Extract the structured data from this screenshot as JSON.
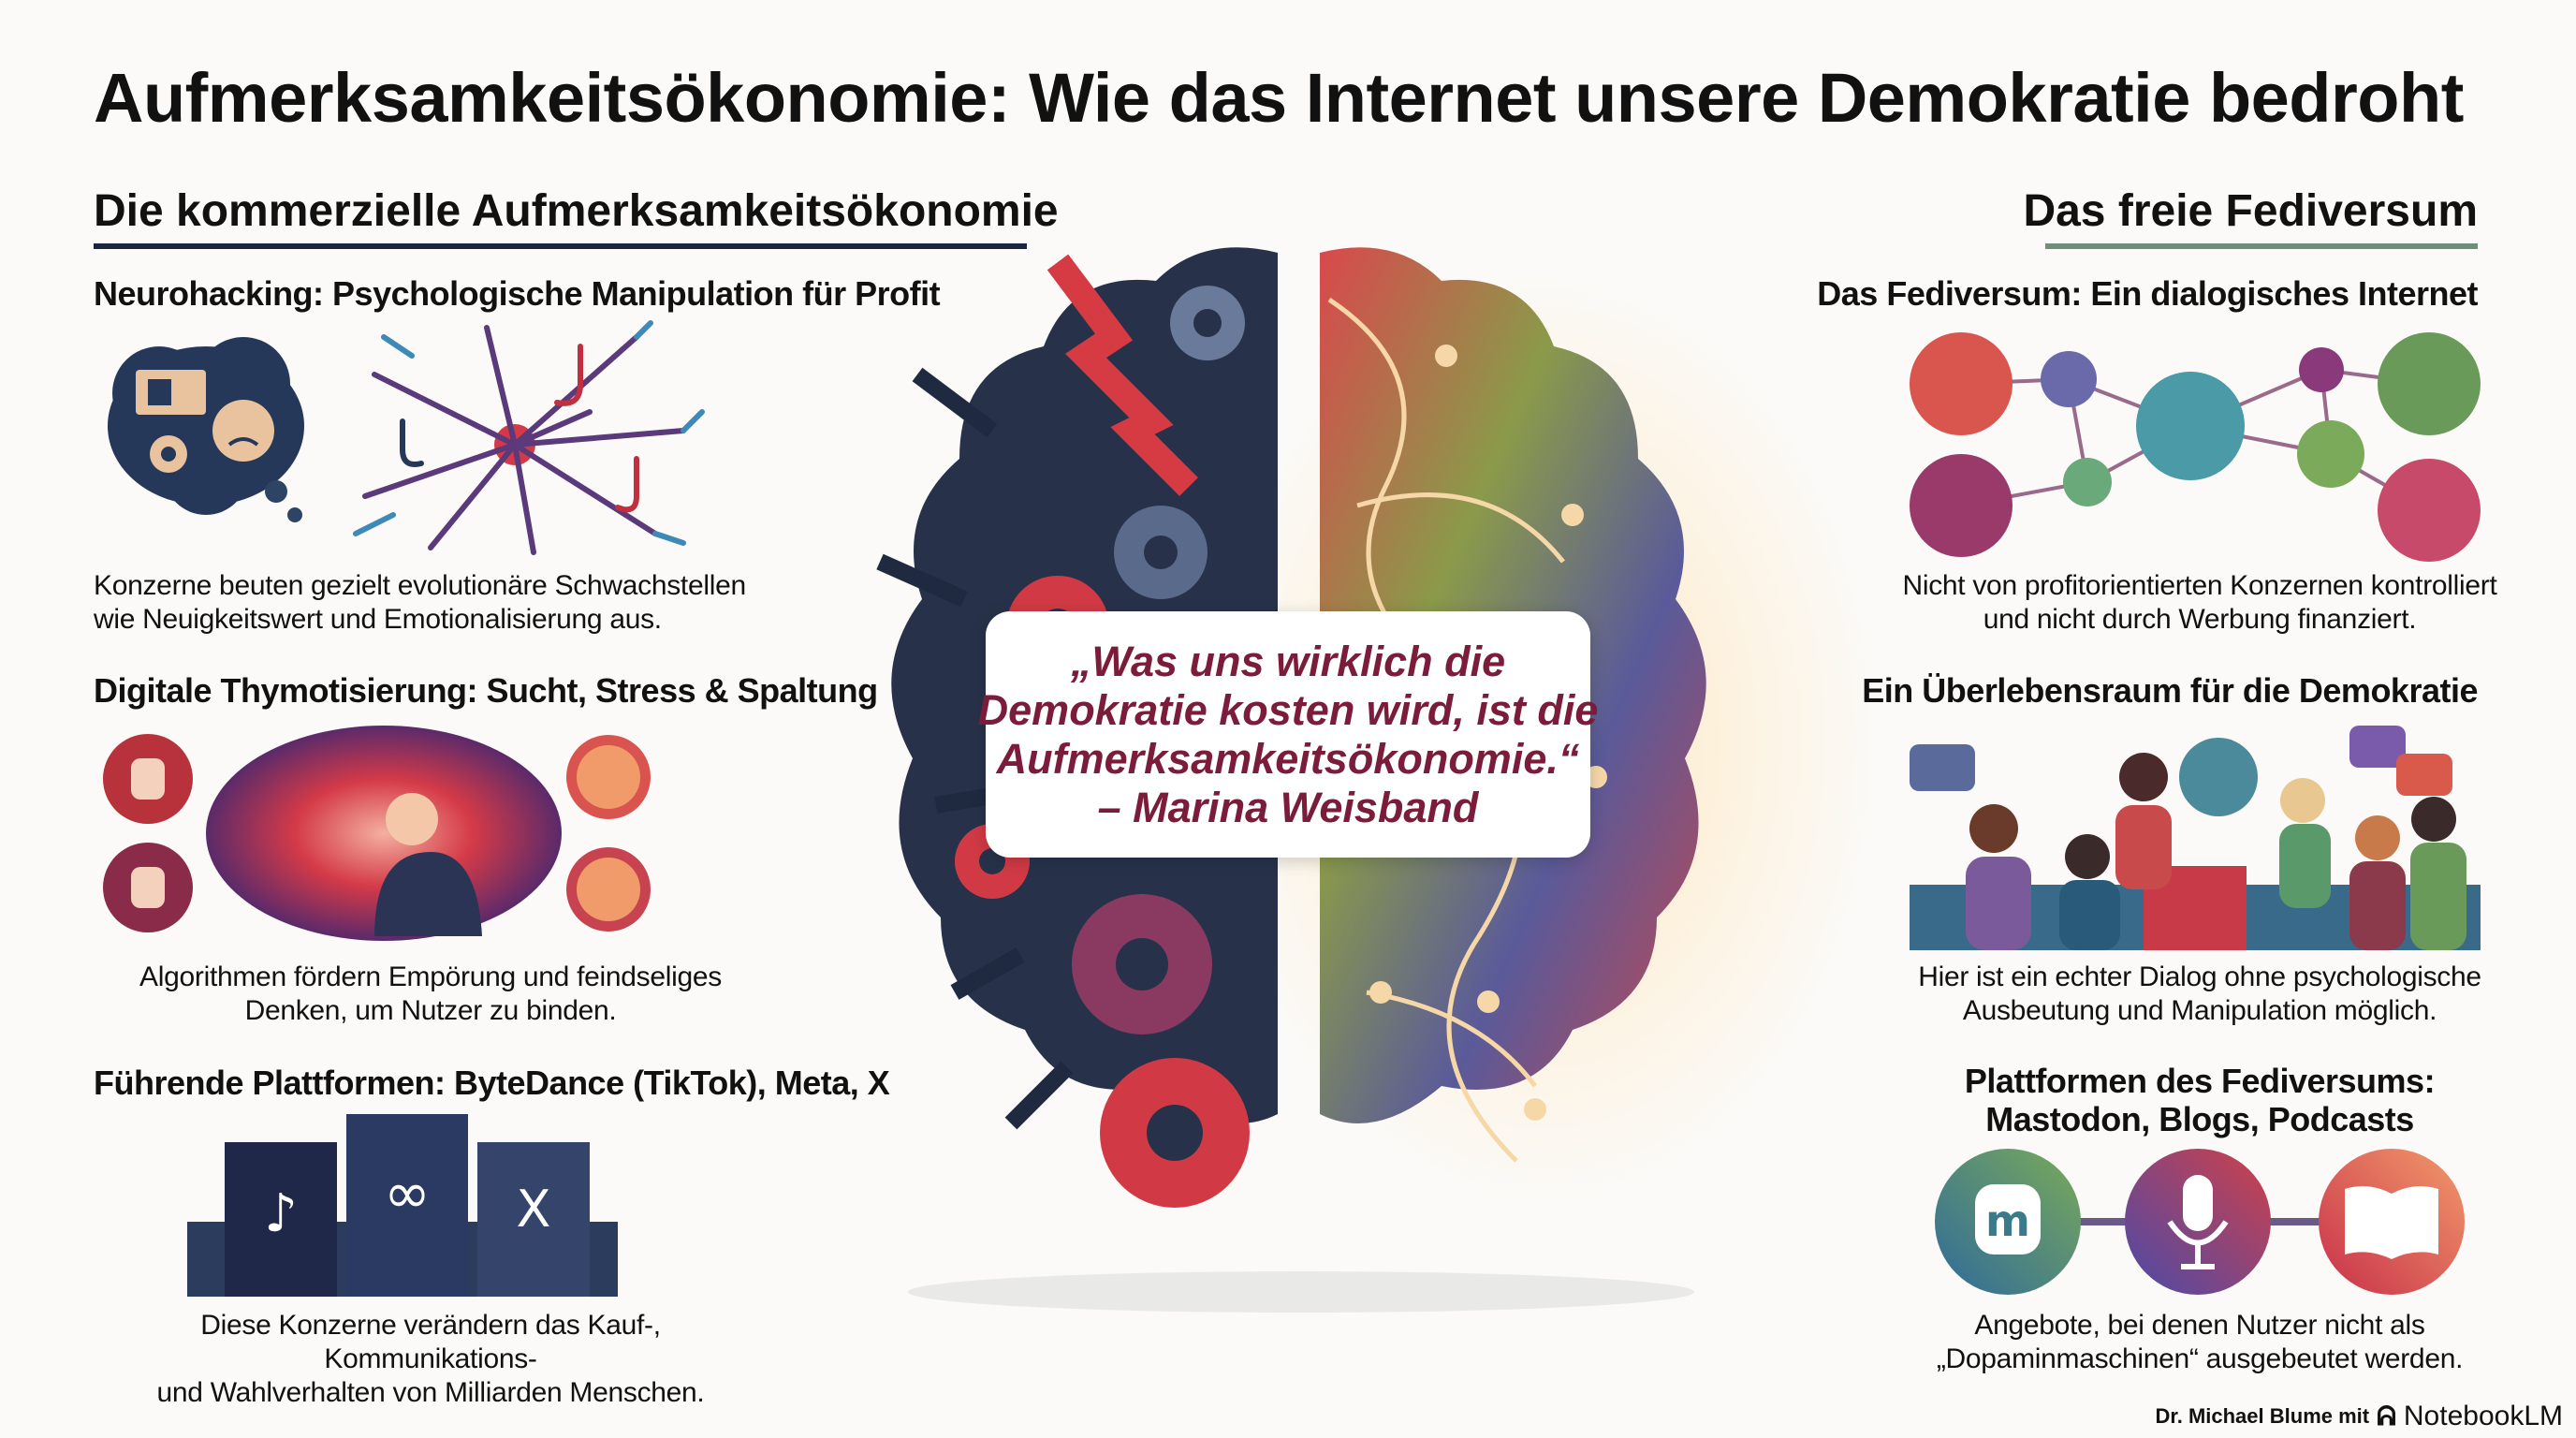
{
  "title": "Aufmerksamkeitsökonomie: Wie das Internet unsere Demokratie bedroht",
  "left": {
    "heading": "Die kommerzielle Aufmerksamkeitsökonomie",
    "accent": "#1c2540",
    "sections": [
      {
        "title": "Neurohacking: Psychologische Manipulation für Profit",
        "text": [
          "Konzerne beuten gezielt evolutionäre Schwachstellen",
          "wie Neuigkeitswert und Emotionalisierung aus."
        ]
      },
      {
        "title": "Digitale Thymotisierung: Sucht, Stress & Spaltung",
        "text": [
          "Algorithmen fördern Empörung und feindseliges",
          "Denken, um Nutzer zu binden."
        ]
      },
      {
        "title": "Führende Plattformen: ByteDance (TikTok), Meta, X",
        "text": [
          "Diese Konzerne verändern das Kauf-, Kommunikations-",
          "und Wahlverhalten von Milliarden Menschen."
        ]
      }
    ]
  },
  "right": {
    "heading": "Das freie Fediversum",
    "accent": "#6f8f7a",
    "sections": [
      {
        "title": "Das Fediversum: Ein dialogisches Internet",
        "text": [
          "Nicht von profitorientierten Konzernen kontrolliert",
          "und nicht durch Werbung finanziert."
        ]
      },
      {
        "title": "Ein Überlebensraum für die Demokratie",
        "text": [
          "Hier ist ein echter Dialog ohne psychologische",
          "Ausbeutung und Manipulation möglich."
        ]
      },
      {
        "title": [
          "Plattformen des Fediversums:",
          "Mastodon, Blogs, Podcasts"
        ],
        "text": [
          "Angebote, bei denen Nutzer nicht als",
          "„Dopaminmaschinen“ ausgebeutet werden."
        ]
      }
    ]
  },
  "quote": {
    "lines": [
      "„Was uns wirklich die",
      "Demokratie kosten wird, ist die",
      "Aufmerksamkeitsökonomie.“",
      "– Marina Weisband"
    ],
    "color": "#7a1c3a"
  },
  "footer": {
    "author": "Dr. Michael Blume mit",
    "brand": "NotebookLM"
  },
  "icons": [
    "thought-cloud-icon",
    "neuron-hook-icon",
    "fist-icon",
    "angry-face-icon",
    "vortex-person-icon",
    "tiktok-icon",
    "meta-icon",
    "x-icon",
    "network-icon",
    "hand-icon",
    "chat-icon",
    "people-dialog-icon",
    "mastodon-icon",
    "podcast-mic-icon",
    "book-icon",
    "brain-icon",
    "gear-icon",
    "notebooklm-icon"
  ]
}
